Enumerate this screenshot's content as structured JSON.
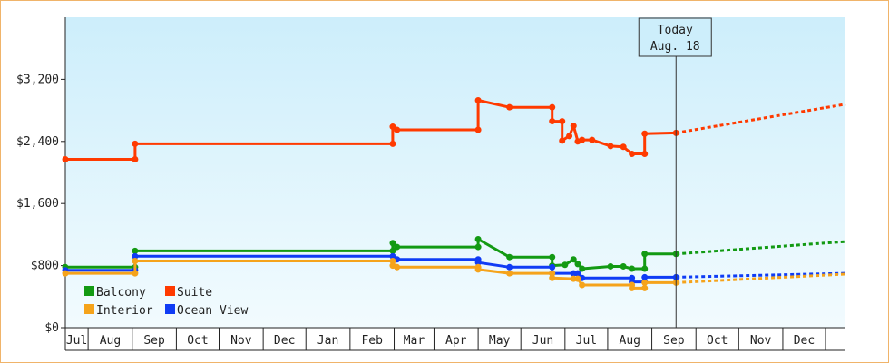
{
  "chart_data": {
    "type": "line",
    "title": "",
    "xlabel": "",
    "ylabel": "",
    "ylim": [
      0,
      4000
    ],
    "y_ticks": [
      "$0",
      "$800",
      "$1,600",
      "$2,400",
      "$3,200"
    ],
    "y_tick_values": [
      0,
      800,
      1600,
      2400,
      3200
    ],
    "month_labels": [
      "Jul",
      "Aug",
      "Sep",
      "Oct",
      "Nov",
      "Dec",
      "Jan",
      "Feb",
      "Mar",
      "Apr",
      "May",
      "Jun",
      "Jul",
      "Aug",
      "Sep",
      "Oct",
      "Nov",
      "Dec"
    ],
    "x_domain": [
      "2022-06-15",
      "2023-12-15"
    ],
    "today": {
      "line1": "Today",
      "line2": "Aug. 18",
      "date": "2023-08-18"
    },
    "grid": false,
    "legend_position": "bottom-left",
    "background_gradient": [
      "#cdeefb",
      "#f2fbfe"
    ],
    "series": [
      {
        "name": "Suite",
        "color": "#ff3a00",
        "points": [
          [
            "2022-06-15",
            2170
          ],
          [
            "2022-08-03",
            2170
          ],
          [
            "2022-08-03",
            2370
          ],
          [
            "2023-01-31",
            2370
          ],
          [
            "2023-01-31",
            2590
          ],
          [
            "2023-02-03",
            2550
          ],
          [
            "2023-04-01",
            2550
          ],
          [
            "2023-04-01",
            2930
          ],
          [
            "2023-04-23",
            2840
          ],
          [
            "2023-05-23",
            2840
          ],
          [
            "2023-05-23",
            2660
          ],
          [
            "2023-05-30",
            2660
          ],
          [
            "2023-05-30",
            2410
          ],
          [
            "2023-06-04",
            2470
          ],
          [
            "2023-06-07",
            2600
          ],
          [
            "2023-06-10",
            2400
          ],
          [
            "2023-06-13",
            2420
          ],
          [
            "2023-06-20",
            2420
          ],
          [
            "2023-07-03",
            2340
          ],
          [
            "2023-07-12",
            2330
          ],
          [
            "2023-07-18",
            2240
          ],
          [
            "2023-07-27",
            2240
          ],
          [
            "2023-07-27",
            2500
          ],
          [
            "2023-08-18",
            2510
          ]
        ],
        "projection": [
          [
            "2023-08-18",
            2510
          ],
          [
            "2023-12-15",
            2880
          ]
        ]
      },
      {
        "name": "Balcony",
        "color": "#139a13",
        "points": [
          [
            "2022-06-15",
            780
          ],
          [
            "2022-08-03",
            780
          ],
          [
            "2022-08-03",
            990
          ],
          [
            "2023-01-31",
            990
          ],
          [
            "2023-01-31",
            1090
          ],
          [
            "2023-02-03",
            1040
          ],
          [
            "2023-04-01",
            1040
          ],
          [
            "2023-04-01",
            1140
          ],
          [
            "2023-04-23",
            910
          ],
          [
            "2023-05-23",
            910
          ],
          [
            "2023-05-23",
            800
          ],
          [
            "2023-06-01",
            810
          ],
          [
            "2023-06-07",
            880
          ],
          [
            "2023-06-10",
            820
          ],
          [
            "2023-06-13",
            760
          ],
          [
            "2023-07-03",
            790
          ],
          [
            "2023-07-12",
            790
          ],
          [
            "2023-07-18",
            760
          ],
          [
            "2023-07-27",
            760
          ],
          [
            "2023-07-27",
            950
          ],
          [
            "2023-08-18",
            950
          ]
        ],
        "projection": [
          [
            "2023-08-18",
            950
          ],
          [
            "2023-12-15",
            1110
          ]
        ]
      },
      {
        "name": "Ocean View",
        "color": "#0f3cf5",
        "points": [
          [
            "2022-06-15",
            740
          ],
          [
            "2022-08-03",
            740
          ],
          [
            "2022-08-03",
            920
          ],
          [
            "2023-01-31",
            920
          ],
          [
            "2023-02-03",
            880
          ],
          [
            "2023-04-01",
            880
          ],
          [
            "2023-04-01",
            840
          ],
          [
            "2023-04-23",
            780
          ],
          [
            "2023-05-23",
            780
          ],
          [
            "2023-05-23",
            700
          ],
          [
            "2023-06-07",
            700
          ],
          [
            "2023-06-10",
            700
          ],
          [
            "2023-06-13",
            640
          ],
          [
            "2023-07-18",
            640
          ],
          [
            "2023-07-18",
            590
          ],
          [
            "2023-07-27",
            590
          ],
          [
            "2023-07-27",
            650
          ],
          [
            "2023-08-18",
            650
          ]
        ],
        "projection": [
          [
            "2023-08-18",
            650
          ],
          [
            "2023-12-15",
            700
          ]
        ]
      },
      {
        "name": "Interior",
        "color": "#f5a31b",
        "points": [
          [
            "2022-06-15",
            700
          ],
          [
            "2022-08-03",
            700
          ],
          [
            "2022-08-03",
            860
          ],
          [
            "2023-01-31",
            860
          ],
          [
            "2023-01-31",
            800
          ],
          [
            "2023-02-03",
            780
          ],
          [
            "2023-04-01",
            780
          ],
          [
            "2023-04-01",
            750
          ],
          [
            "2023-04-23",
            700
          ],
          [
            "2023-05-23",
            700
          ],
          [
            "2023-05-23",
            640
          ],
          [
            "2023-06-07",
            630
          ],
          [
            "2023-06-10",
            630
          ],
          [
            "2023-06-13",
            550
          ],
          [
            "2023-07-18",
            550
          ],
          [
            "2023-07-18",
            510
          ],
          [
            "2023-07-27",
            510
          ],
          [
            "2023-07-27",
            580
          ],
          [
            "2023-08-18",
            580
          ]
        ],
        "projection": [
          [
            "2023-08-18",
            580
          ],
          [
            "2023-12-15",
            690
          ]
        ]
      }
    ],
    "legend": [
      {
        "label": "Balcony",
        "color": "#139a13"
      },
      {
        "label": "Suite",
        "color": "#ff3a00"
      },
      {
        "label": "Interior",
        "color": "#f5a31b"
      },
      {
        "label": "Ocean View",
        "color": "#0f3cf5"
      }
    ]
  }
}
